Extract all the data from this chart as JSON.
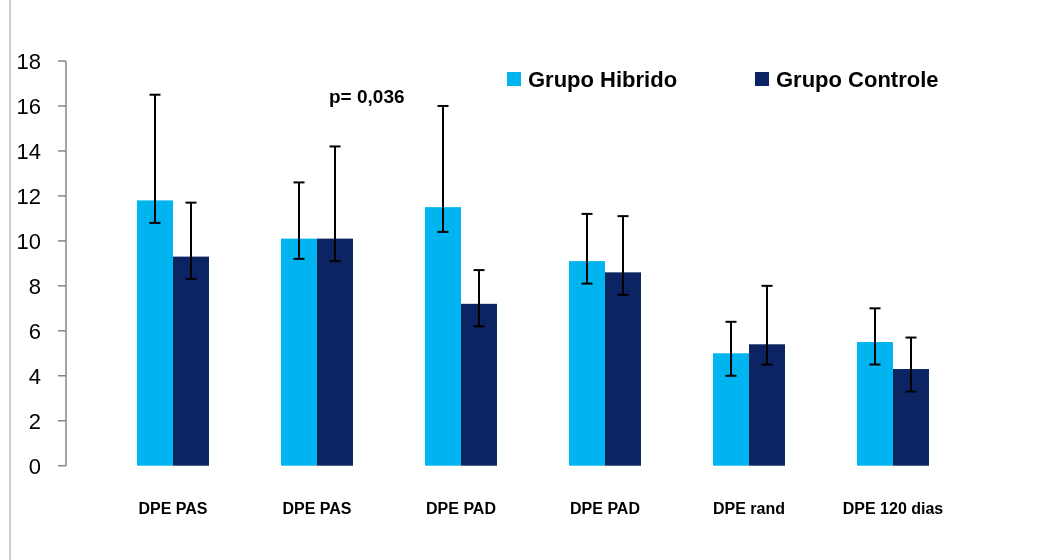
{
  "chart_data": {
    "type": "bar",
    "categories": [
      "DPE PAS",
      "DPE PAS",
      "DPE PAD",
      "DPE PAD",
      "DPE rand",
      "DPE 120 dias"
    ],
    "series": [
      {
        "name": "Grupo Hibrido",
        "color": "#00b4ef",
        "values": [
          11.8,
          10.1,
          11.5,
          9.1,
          5.0,
          5.5
        ],
        "errors": [
          [
            10.8,
            16.5
          ],
          [
            9.2,
            12.6
          ],
          [
            10.4,
            16.0
          ],
          [
            8.1,
            11.2
          ],
          [
            4.0,
            6.4
          ],
          [
            4.5,
            7.0
          ]
        ]
      },
      {
        "name": "Grupo Controle",
        "color": "#0c2461",
        "values": [
          9.3,
          10.1,
          7.2,
          8.6,
          5.4,
          4.3
        ],
        "errors": [
          [
            8.3,
            11.7
          ],
          [
            9.1,
            14.2
          ],
          [
            6.2,
            8.7
          ],
          [
            7.6,
            11.1
          ],
          [
            4.5,
            8.0
          ],
          [
            3.3,
            5.7
          ]
        ]
      }
    ],
    "ylim": [
      0,
      18
    ],
    "yticks": [
      0,
      2,
      4,
      6,
      8,
      10,
      12,
      14,
      16,
      18
    ],
    "legend": "top right",
    "annotations": [
      "p= 0,036"
    ]
  }
}
